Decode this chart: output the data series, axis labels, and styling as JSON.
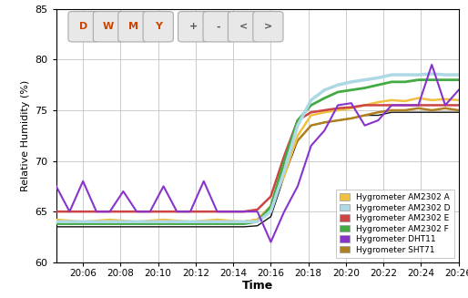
{
  "xlabel": "Time",
  "ylabel": "Relative Humidity (%)",
  "ylim": [
    60,
    85
  ],
  "yticks": [
    60,
    65,
    70,
    75,
    80,
    85
  ],
  "xtick_labels": [
    "20:06",
    "20:08",
    "20:10",
    "20:12",
    "20:14",
    "20:16",
    "20:18",
    "20:20",
    "20:22",
    "20:24",
    "20:26"
  ],
  "bg_color": "#ffffff",
  "grid_color": "#cccccc",
  "button_labels": [
    "D",
    "W",
    "M",
    "Y",
    "|",
    "+",
    "-",
    "<",
    ">"
  ],
  "legend_entries": [
    {
      "label": "Hygrometer AM2302 A",
      "color": "#f0c040"
    },
    {
      "label": "Hygrometer AM2302 D",
      "color": "#add8e6"
    },
    {
      "label": "Hygrometer AM2302 E",
      "color": "#cc4444"
    },
    {
      "label": "Hygrometer AM2302 F",
      "color": "#44aa44"
    },
    {
      "label": "Hygrometer DHT11",
      "color": "#8833cc"
    },
    {
      "label": "Hygrometer SHT71",
      "color": "#b08020"
    }
  ],
  "series": {
    "AM2302_A": {
      "color": "#f0c040",
      "lw": 1.8,
      "x": [
        0,
        1,
        2,
        3,
        4,
        5,
        6,
        7,
        8,
        9,
        10,
        11,
        12,
        13,
        14,
        15,
        16,
        17,
        18,
        19,
        20,
        21,
        22,
        23,
        24,
        25,
        26,
        27,
        28,
        29,
        30
      ],
      "y": [
        64.2,
        64.1,
        64.0,
        64.1,
        64.2,
        64.1,
        64.0,
        64.1,
        64.2,
        64.1,
        64.0,
        64.1,
        64.2,
        64.1,
        64.0,
        64.2,
        65.5,
        68.5,
        72.5,
        74.5,
        74.8,
        75.0,
        75.2,
        75.5,
        75.8,
        76.0,
        75.9,
        76.2,
        76.0,
        76.1,
        76.0
      ]
    },
    "AM2302_D": {
      "color": "#add8e6",
      "lw": 2.5,
      "x": [
        0,
        1,
        2,
        3,
        4,
        5,
        6,
        7,
        8,
        9,
        10,
        11,
        12,
        13,
        14,
        15,
        16,
        17,
        18,
        19,
        20,
        21,
        22,
        23,
        24,
        25,
        26,
        27,
        28,
        29,
        30
      ],
      "y": [
        64.0,
        64.0,
        64.0,
        64.0,
        64.0,
        64.0,
        64.0,
        64.0,
        64.0,
        64.0,
        64.0,
        64.0,
        64.0,
        64.0,
        64.0,
        64.0,
        65.0,
        69.0,
        73.5,
        76.0,
        77.0,
        77.5,
        77.8,
        78.0,
        78.2,
        78.5,
        78.5,
        78.5,
        78.6,
        78.5,
        78.5
      ]
    },
    "AM2302_E": {
      "color": "#cc4444",
      "lw": 1.8,
      "x": [
        0,
        1,
        2,
        3,
        4,
        5,
        6,
        7,
        8,
        9,
        10,
        11,
        12,
        13,
        14,
        15,
        16,
        17,
        18,
        19,
        20,
        21,
        22,
        23,
        24,
        25,
        26,
        27,
        28,
        29,
        30
      ],
      "y": [
        65.0,
        65.0,
        65.0,
        65.0,
        65.0,
        65.0,
        65.0,
        65.0,
        65.0,
        65.0,
        65.0,
        65.0,
        65.0,
        65.0,
        65.0,
        65.2,
        66.5,
        70.5,
        74.0,
        74.8,
        75.0,
        75.2,
        75.3,
        75.5,
        75.5,
        75.5,
        75.5,
        75.5,
        75.5,
        75.5,
        75.5
      ]
    },
    "AM2302_F": {
      "color": "#44aa44",
      "lw": 2.0,
      "x": [
        0,
        1,
        2,
        3,
        4,
        5,
        6,
        7,
        8,
        9,
        10,
        11,
        12,
        13,
        14,
        15,
        16,
        17,
        18,
        19,
        20,
        21,
        22,
        23,
        24,
        25,
        26,
        27,
        28,
        29,
        30
      ],
      "y": [
        63.8,
        63.8,
        63.8,
        63.8,
        63.8,
        63.8,
        63.8,
        63.8,
        63.8,
        63.8,
        63.8,
        63.8,
        63.8,
        63.8,
        63.8,
        64.0,
        65.5,
        70.0,
        74.0,
        75.5,
        76.2,
        76.8,
        77.0,
        77.2,
        77.5,
        77.8,
        77.8,
        78.0,
        78.0,
        78.0,
        78.0
      ]
    },
    "DHT11": {
      "color": "#8833cc",
      "lw": 1.5,
      "x": [
        0,
        1,
        2,
        3,
        4,
        5,
        6,
        7,
        8,
        9,
        10,
        11,
        12,
        13,
        14,
        15,
        16,
        17,
        18,
        19,
        20,
        21,
        22,
        23,
        24,
        25,
        26,
        27,
        28,
        29,
        30
      ],
      "y": [
        67.5,
        65.0,
        68.0,
        65.0,
        65.0,
        67.0,
        65.0,
        65.0,
        67.5,
        65.0,
        65.0,
        68.0,
        65.0,
        65.0,
        65.0,
        65.0,
        62.0,
        65.0,
        67.5,
        71.5,
        73.0,
        75.5,
        75.7,
        73.5,
        74.0,
        75.5,
        75.5,
        75.5,
        79.5,
        75.5,
        77.0
      ]
    },
    "SHT71": {
      "color": "#b08020",
      "lw": 1.8,
      "x": [
        0,
        1,
        2,
        3,
        4,
        5,
        6,
        7,
        8,
        9,
        10,
        11,
        12,
        13,
        14,
        15,
        16,
        17,
        18,
        19,
        20,
        21,
        22,
        23,
        24,
        25,
        26,
        27,
        28,
        29,
        30
      ],
      "y": [
        64.0,
        64.0,
        64.0,
        64.0,
        64.0,
        64.0,
        64.0,
        64.0,
        64.0,
        64.0,
        64.0,
        64.0,
        64.0,
        64.0,
        64.0,
        64.2,
        65.5,
        69.5,
        72.0,
        73.5,
        73.8,
        74.0,
        74.2,
        74.5,
        74.8,
        75.0,
        75.0,
        75.2,
        75.0,
        75.2,
        75.0
      ]
    },
    "black_ref": {
      "color": "#111111",
      "lw": 1.0,
      "x": [
        0,
        1,
        2,
        3,
        4,
        5,
        6,
        7,
        8,
        9,
        10,
        11,
        12,
        13,
        14,
        15,
        16,
        17,
        18,
        19,
        20,
        21,
        22,
        23,
        24,
        25,
        26,
        27,
        28,
        29,
        30
      ],
      "y": [
        63.5,
        63.5,
        63.5,
        63.5,
        63.5,
        63.5,
        63.5,
        63.5,
        63.5,
        63.5,
        63.5,
        63.5,
        63.5,
        63.5,
        63.5,
        63.6,
        64.5,
        68.5,
        72.0,
        73.5,
        73.8,
        74.0,
        74.2,
        74.5,
        74.5,
        74.8,
        74.8,
        74.8,
        74.8,
        74.8,
        74.8
      ]
    }
  }
}
